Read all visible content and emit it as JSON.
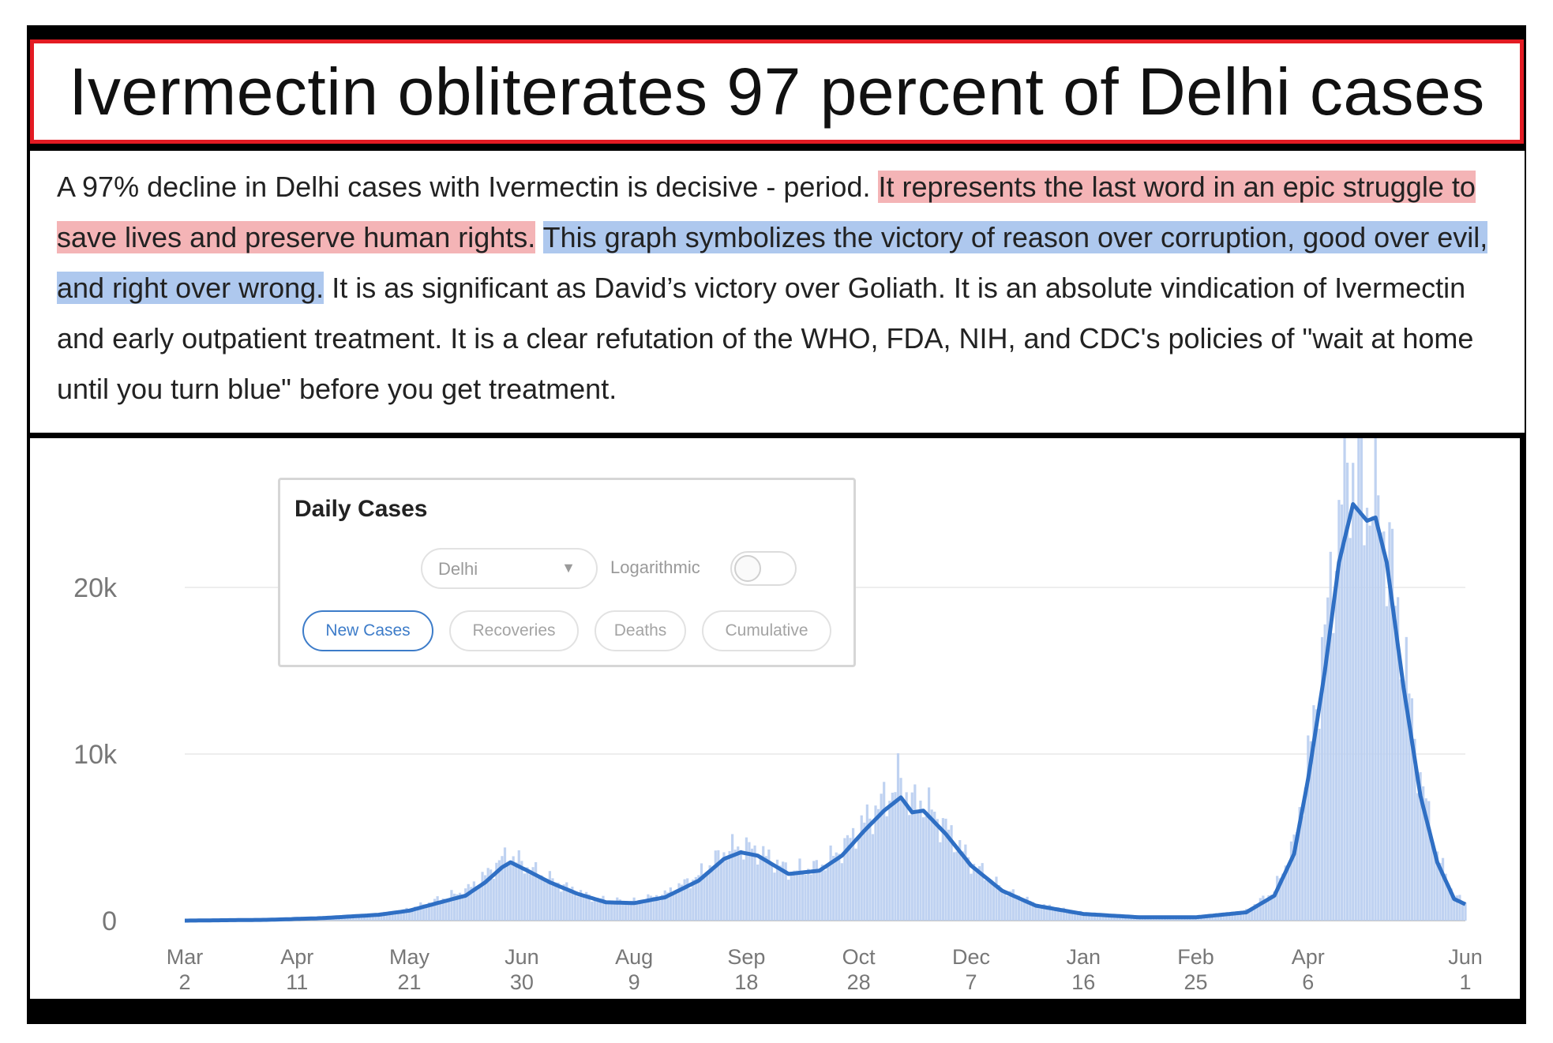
{
  "headline": "Ivermectin obliterates 97 percent of Delhi cases",
  "paragraph": {
    "plain_1": "A 97% decline in Delhi cases with Ivermectin is decisive - period. ",
    "red_highlight": "It represents the last word in an epic struggle to save lives and preserve human rights.",
    "space": " ",
    "blue_highlight": "This graph symbolizes the victory of reason over corruption, good over evil, and right over wrong.",
    "plain_2": " It is as significant as David’s victory over Goliath. It is an absolute vindication of Ivermectin and early outpatient treatment. It is a clear refutation of the WHO, FDA, NIH, and CDC's policies of \"wait at home until you turn blue\" before you get treatment."
  },
  "highlight_colors": {
    "red": "#f4b4b6",
    "blue": "#aec8ee",
    "frame_red": "#e31b23"
  },
  "controls": {
    "title": "Daily Cases",
    "region_value": "Delhi",
    "log_label": "Logarithmic",
    "log_enabled": false,
    "tabs": [
      "New Cases",
      "Recoveries",
      "Deaths",
      "Cumulative"
    ],
    "active_tab": "New Cases"
  },
  "chart_data": {
    "type": "area",
    "title": "",
    "xlabel": "",
    "ylabel": "",
    "ylim": [
      0,
      26000
    ],
    "y_ticks": [
      0,
      10000,
      20000
    ],
    "y_tick_labels": [
      "0",
      "10k",
      "20k"
    ],
    "x_ticks": [
      "2020-03-02",
      "2020-04-11",
      "2020-05-21",
      "2020-06-30",
      "2020-08-09",
      "2020-09-18",
      "2020-10-28",
      "2020-12-07",
      "2021-01-16",
      "2021-02-25",
      "2021-04-06",
      "2021-06-01"
    ],
    "x_tick_labels": [
      [
        "Mar",
        "2"
      ],
      [
        "Apr",
        "11"
      ],
      [
        "May",
        "21"
      ],
      [
        "Jun",
        "30"
      ],
      [
        "Aug",
        "9"
      ],
      [
        "Sep",
        "18"
      ],
      [
        "Oct",
        "28"
      ],
      [
        "Dec",
        "7"
      ],
      [
        "Jan",
        "16"
      ],
      [
        "Feb",
        "25"
      ],
      [
        "Apr",
        "6"
      ],
      [
        "Jun",
        "1"
      ]
    ],
    "series": [
      {
        "kind": "7-day average line",
        "color": "#2f6fc4",
        "points": [
          [
            "2020-03-02",
            0
          ],
          [
            "2020-04-01",
            50
          ],
          [
            "2020-04-20",
            150
          ],
          [
            "2020-05-10",
            350
          ],
          [
            "2020-05-21",
            600
          ],
          [
            "2020-06-01",
            1100
          ],
          [
            "2020-06-10",
            1500
          ],
          [
            "2020-06-17",
            2300
          ],
          [
            "2020-06-23",
            3200
          ],
          [
            "2020-06-26",
            3500
          ],
          [
            "2020-07-02",
            3000
          ],
          [
            "2020-07-10",
            2300
          ],
          [
            "2020-07-20",
            1600
          ],
          [
            "2020-07-30",
            1100
          ],
          [
            "2020-08-09",
            1050
          ],
          [
            "2020-08-20",
            1400
          ],
          [
            "2020-09-01",
            2400
          ],
          [
            "2020-09-10",
            3700
          ],
          [
            "2020-09-16",
            4100
          ],
          [
            "2020-09-22",
            3900
          ],
          [
            "2020-10-03",
            2800
          ],
          [
            "2020-10-14",
            3000
          ],
          [
            "2020-10-22",
            3900
          ],
          [
            "2020-10-30",
            5400
          ],
          [
            "2020-11-06",
            6600
          ],
          [
            "2020-11-12",
            7400
          ],
          [
            "2020-11-16",
            6500
          ],
          [
            "2020-11-20",
            6600
          ],
          [
            "2020-11-28",
            5200
          ],
          [
            "2020-12-07",
            3300
          ],
          [
            "2020-12-18",
            1800
          ],
          [
            "2020-12-30",
            900
          ],
          [
            "2021-01-16",
            400
          ],
          [
            "2021-02-05",
            200
          ],
          [
            "2021-02-25",
            200
          ],
          [
            "2021-03-15",
            500
          ],
          [
            "2021-03-25",
            1500
          ],
          [
            "2021-04-01",
            4000
          ],
          [
            "2021-04-06",
            8500
          ],
          [
            "2021-04-12",
            15000
          ],
          [
            "2021-04-17",
            21500
          ],
          [
            "2021-04-22",
            25000
          ],
          [
            "2021-04-27",
            24000
          ],
          [
            "2021-04-30",
            24200
          ],
          [
            "2021-05-04",
            21500
          ],
          [
            "2021-05-10",
            14000
          ],
          [
            "2021-05-16",
            7500
          ],
          [
            "2021-05-22",
            3500
          ],
          [
            "2021-05-28",
            1300
          ],
          [
            "2021-06-02",
            900
          ]
        ]
      },
      {
        "kind": "daily bars",
        "color": "#b8cdef",
        "points": [
          [
            "2020-03-02",
            0
          ],
          [
            "2020-04-01",
            60
          ],
          [
            "2020-04-20",
            180
          ],
          [
            "2020-05-10",
            400
          ],
          [
            "2020-05-21",
            700
          ],
          [
            "2020-06-01",
            1300
          ],
          [
            "2020-06-10",
            1800
          ],
          [
            "2020-06-17",
            2700
          ],
          [
            "2020-06-23",
            3700
          ],
          [
            "2020-06-26",
            3900
          ],
          [
            "2020-07-02",
            3200
          ],
          [
            "2020-07-10",
            2500
          ],
          [
            "2020-07-20",
            1700
          ],
          [
            "2020-07-30",
            1200
          ],
          [
            "2020-08-09",
            1150
          ],
          [
            "2020-08-20",
            1600
          ],
          [
            "2020-09-01",
            2700
          ],
          [
            "2020-09-10",
            4100
          ],
          [
            "2020-09-16",
            4500
          ],
          [
            "2020-09-22",
            4200
          ],
          [
            "2020-10-03",
            3000
          ],
          [
            "2020-10-14",
            3200
          ],
          [
            "2020-10-22",
            4300
          ],
          [
            "2020-10-30",
            5900
          ],
          [
            "2020-11-06",
            7200
          ],
          [
            "2020-11-12",
            8500
          ],
          [
            "2020-11-16",
            7000
          ],
          [
            "2020-11-20",
            7100
          ],
          [
            "2020-11-28",
            5600
          ],
          [
            "2020-12-07",
            3500
          ],
          [
            "2020-12-18",
            1900
          ],
          [
            "2020-12-30",
            1000
          ],
          [
            "2021-01-16",
            450
          ],
          [
            "2021-02-05",
            220
          ],
          [
            "2021-02-25",
            220
          ],
          [
            "2021-03-15",
            600
          ],
          [
            "2021-03-25",
            1800
          ],
          [
            "2021-04-01",
            4600
          ],
          [
            "2021-04-06",
            9500
          ],
          [
            "2021-04-12",
            17000
          ],
          [
            "2021-04-17",
            24000
          ],
          [
            "2021-04-20",
            28000
          ],
          [
            "2021-04-22",
            27000
          ],
          [
            "2021-04-27",
            25500
          ],
          [
            "2021-04-30",
            26000
          ],
          [
            "2021-05-04",
            23000
          ],
          [
            "2021-05-10",
            16000
          ],
          [
            "2021-05-16",
            8500
          ],
          [
            "2021-05-22",
            4000
          ],
          [
            "2021-05-28",
            1500
          ],
          [
            "2021-06-02",
            1000
          ]
        ]
      }
    ]
  }
}
